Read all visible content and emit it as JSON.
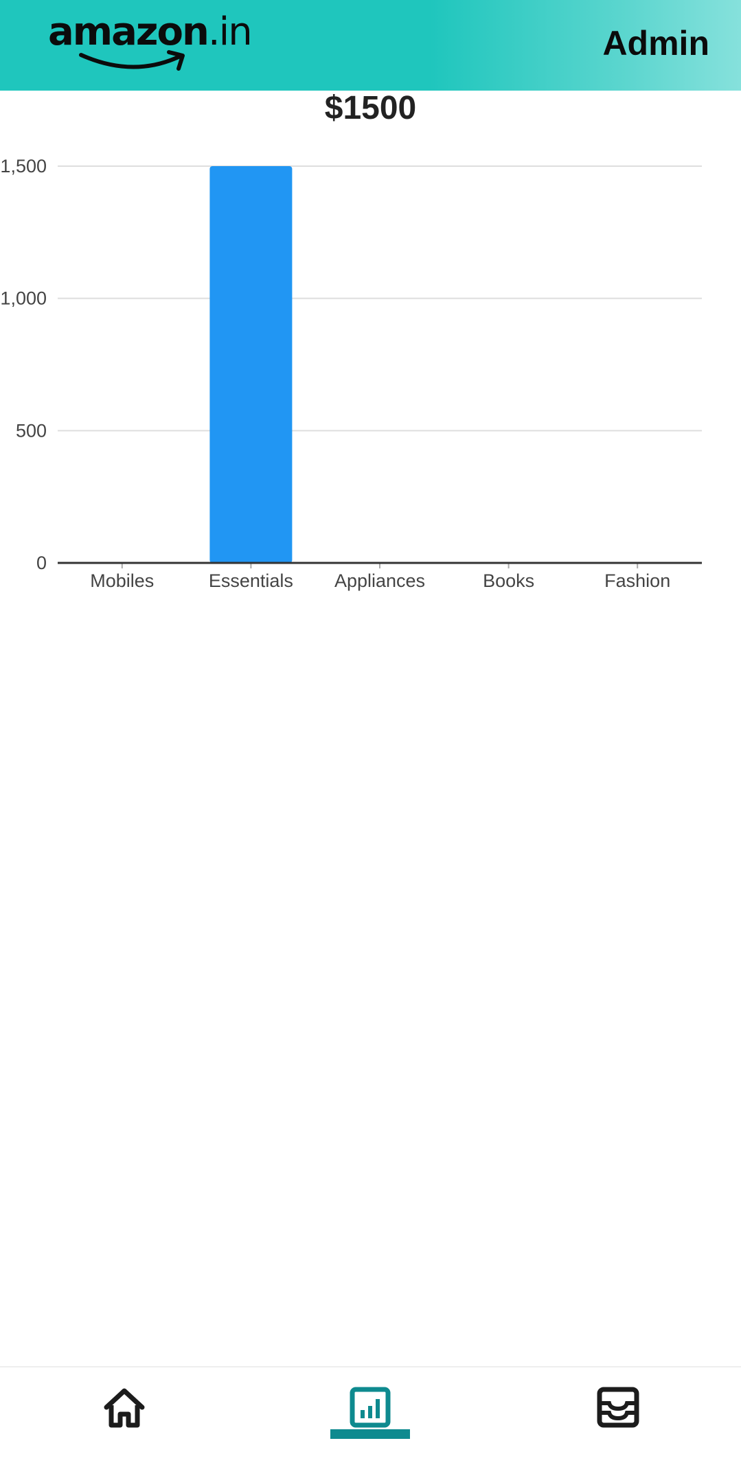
{
  "app": {
    "logo_text": "amazon",
    "logo_suffix": ".in",
    "user_role": "Admin",
    "accent_color": "#1fc6bd"
  },
  "analytics": {
    "total_earnings": "$1500"
  },
  "chart_data": {
    "type": "bar",
    "categories": [
      "Mobiles",
      "Essentials",
      "Appliances",
      "Books",
      "Fashion"
    ],
    "values": [
      0,
      1500,
      0,
      0,
      0
    ],
    "y_ticks": [
      0,
      500,
      1000,
      1500
    ],
    "y_tick_labels": [
      "0",
      "500",
      "1,000",
      "1,500"
    ],
    "ylim": [
      0,
      1500
    ],
    "grid": true,
    "bar_color": "#2196f3"
  },
  "bottom_nav": {
    "items": [
      {
        "icon": "home-icon",
        "selected": false
      },
      {
        "icon": "analytics-icon",
        "selected": true
      },
      {
        "icon": "inbox-icon",
        "selected": false
      }
    ],
    "selected_color": "#0e8a8f",
    "icon_color": "#1c1c1c"
  }
}
